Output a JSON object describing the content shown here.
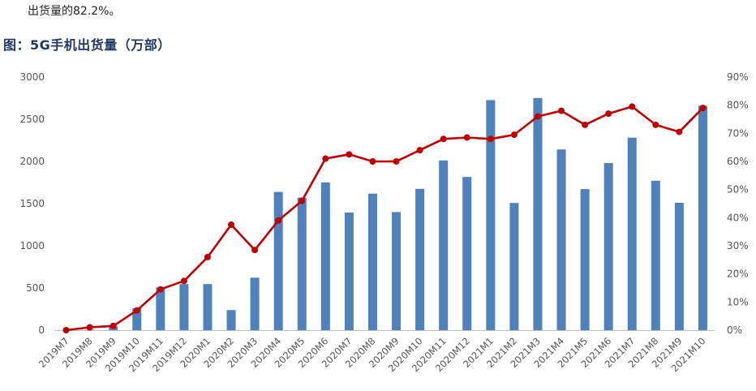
{
  "intro_text": "出货量的82.2%。",
  "figure_title": "图：5G手机出货量（万部）",
  "colors": {
    "bar": "#4f81bd",
    "line": "#c00000",
    "title": "#1f3864"
  },
  "chart_data": {
    "type": "bar",
    "categories": [
      "2019M7",
      "2019M8",
      "2019M9",
      "2019M10",
      "2019M11",
      "2019M12",
      "2020M1",
      "2020M2",
      "2020M3",
      "2020M4",
      "2020M5",
      "2020M6",
      "2020M7",
      "2020M8",
      "2020M9",
      "2020M10",
      "2020M11",
      "2020M12",
      "2021M1",
      "2021M2",
      "2021M3",
      "2021M4",
      "2021M5",
      "2021M6",
      "2021M7",
      "2021M8",
      "2021M9",
      "2021M10"
    ],
    "series": [
      {
        "type": "bar",
        "axis": "left",
        "values": [
          0,
          5,
          40,
          260,
          507,
          546,
          546,
          238,
          622,
          1638,
          1571,
          1751,
          1394,
          1618,
          1400,
          1675,
          2012,
          1816,
          2727,
          1508,
          2752,
          2142,
          1672,
          1980,
          2282,
          1771,
          1510,
          2660
        ]
      },
      {
        "type": "line",
        "axis": "right",
        "unit": "%",
        "values": [
          0,
          1,
          1.5,
          7,
          14.5,
          17.5,
          26,
          37.5,
          28.5,
          39,
          46,
          61,
          62.5,
          60,
          60,
          64,
          68,
          68.5,
          68,
          69.5,
          76,
          78,
          73,
          77,
          79.5,
          73,
          70.5,
          79
        ]
      }
    ],
    "y_left": {
      "min": 0,
      "max": 3000,
      "ticks": [
        "0",
        "500",
        "1000",
        "1500",
        "2000",
        "2500",
        "3000"
      ]
    },
    "y_right": {
      "min": 0,
      "max": 90,
      "ticks": [
        "0%",
        "10%",
        "20%",
        "30%",
        "40%",
        "50%",
        "60%",
        "70%",
        "80%",
        "90%"
      ]
    },
    "grid": false,
    "legend": "none"
  }
}
